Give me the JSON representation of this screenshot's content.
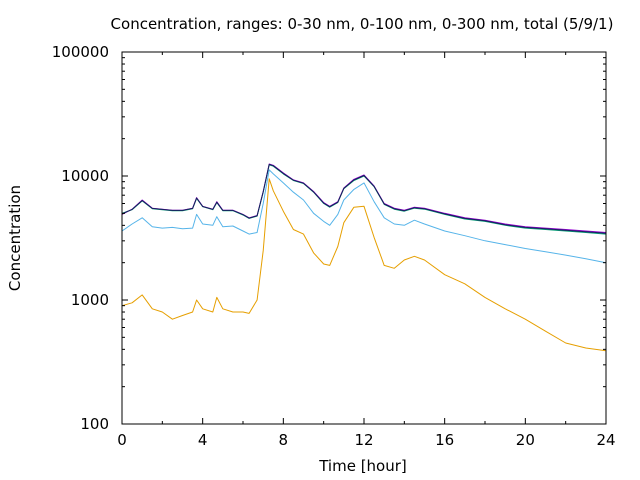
{
  "chart_data": {
    "type": "line",
    "title": "Concentration, ranges: 0-30 nm, 0-100 nm, 0-300 nm, total (5/9/1)",
    "xlabel": "Time [hour]",
    "ylabel": "Concentration",
    "xlim": [
      0,
      24
    ],
    "ylim": [
      100,
      100000
    ],
    "yscale": "log",
    "grid": false,
    "legend": "none",
    "x_ticks": [
      {
        "value": 0,
        "label": "0"
      },
      {
        "value": 4,
        "label": "4"
      },
      {
        "value": 8,
        "label": "8"
      },
      {
        "value": 12,
        "label": "12"
      },
      {
        "value": 16,
        "label": "16"
      },
      {
        "value": 20,
        "label": "20"
      },
      {
        "value": 24,
        "label": "24"
      }
    ],
    "y_ticks": [
      {
        "value": 100,
        "label": "100"
      },
      {
        "value": 1000,
        "label": "1000"
      },
      {
        "value": 10000,
        "label": "10000"
      },
      {
        "value": 100000,
        "label": "100000"
      }
    ],
    "x": [
      0,
      0.5,
      1,
      1.5,
      2,
      2.5,
      3,
      3.5,
      3.7,
      4,
      4.5,
      4.7,
      5,
      5.5,
      6,
      6.3,
      6.7,
      7,
      7.3,
      7.5,
      8,
      8.5,
      9,
      9.5,
      10,
      10.3,
      10.7,
      11,
      11.5,
      12,
      12.5,
      13,
      13.5,
      14,
      14.5,
      15,
      16,
      17,
      18,
      19,
      20,
      21,
      22,
      23,
      24
    ],
    "series": [
      {
        "color": "#9400d3",
        "values": [
          4900,
          5400,
          6400,
          5500,
          5400,
          5300,
          5300,
          5500,
          6700,
          5700,
          5400,
          6200,
          5300,
          5300,
          4900,
          4600,
          4800,
          7500,
          12500,
          12200,
          10600,
          9300,
          8800,
          7500,
          6100,
          5700,
          6200,
          8000,
          9400,
          10200,
          8300,
          6000,
          5500,
          5300,
          5600,
          5500,
          5000,
          4600,
          4400,
          4100,
          3900,
          3800,
          3700,
          3600,
          3500
        ]
      },
      {
        "color": "#009e73",
        "values": [
          5000,
          5350,
          6300,
          5450,
          5350,
          5250,
          5250,
          5450,
          6600,
          5650,
          5350,
          6100,
          5250,
          5250,
          4850,
          4550,
          4750,
          7400,
          12300,
          12000,
          10400,
          9200,
          8700,
          7400,
          6000,
          5600,
          6100,
          7900,
          9200,
          10000,
          8200,
          5900,
          5400,
          5200,
          5500,
          5400,
          4900,
          4500,
          4300,
          4000,
          3800,
          3700,
          3600,
          3500,
          3400
        ]
      },
      {
        "color": "#1a1a5e",
        "values": [
          4950,
          5380,
          6350,
          5480,
          5380,
          5280,
          5280,
          5480,
          6650,
          5680,
          5380,
          6150,
          5280,
          5280,
          4880,
          4580,
          4780,
          7450,
          12400,
          12100,
          10500,
          9250,
          8750,
          7450,
          6050,
          5650,
          6150,
          7950,
          9300,
          10100,
          8250,
          5950,
          5450,
          5250,
          5550,
          5450,
          4950,
          4550,
          4350,
          4050,
          3850,
          3750,
          3650,
          3550,
          3450
        ]
      },
      {
        "color": "#56b4e9",
        "values": [
          3600,
          4100,
          4600,
          3900,
          3800,
          3850,
          3750,
          3800,
          4900,
          4100,
          4000,
          4700,
          3900,
          3950,
          3600,
          3400,
          3500,
          6000,
          11200,
          10400,
          8800,
          7400,
          6400,
          5000,
          4300,
          4000,
          4900,
          6400,
          7800,
          8800,
          6200,
          4600,
          4100,
          4000,
          4400,
          4100,
          3600,
          3300,
          3000,
          2800,
          2600,
          2450,
          2300,
          2150,
          2000
        ]
      },
      {
        "color": "#e69f00",
        "values": [
          900,
          950,
          1100,
          850,
          800,
          700,
          750,
          800,
          1000,
          850,
          800,
          1050,
          850,
          800,
          800,
          780,
          1000,
          2500,
          9500,
          7600,
          5200,
          3700,
          3400,
          2400,
          1950,
          1900,
          2700,
          4200,
          5600,
          5700,
          3200,
          1900,
          1800,
          2100,
          2250,
          2100,
          1600,
          1350,
          1050,
          850,
          700,
          560,
          450,
          410,
          390
        ]
      }
    ]
  }
}
